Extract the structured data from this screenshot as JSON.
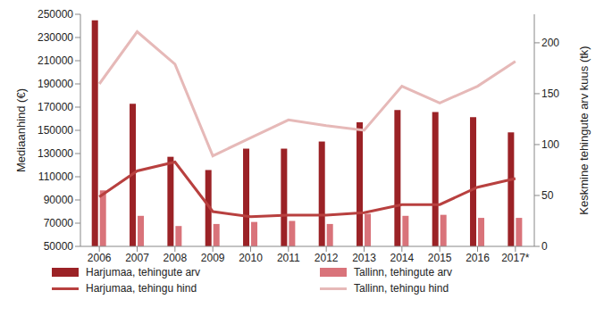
{
  "chart_data": {
    "type": "bar",
    "categories": [
      "2006",
      "2007",
      "2008",
      "2009",
      "2010",
      "2011",
      "2012",
      "2013",
      "2014",
      "2015",
      "2016",
      "2017*"
    ],
    "y_label": "Mediaanhind (€)",
    "y2_label": "Keskmine tehingute arv kuus (tk)",
    "ylim": [
      50000,
      250000
    ],
    "yticks": [
      50000,
      70000,
      90000,
      110000,
      130000,
      150000,
      170000,
      190000,
      210000,
      230000,
      250000
    ],
    "y2lim": [
      0,
      228
    ],
    "y2ticks": [
      0,
      50,
      100,
      150,
      200
    ],
    "grid": false,
    "legend": "bottom",
    "series": [
      {
        "name": "Harjumaa, tehingute arv",
        "type": "bar",
        "axis": "y2",
        "color": "#9b2226",
        "values": [
          222,
          140,
          88,
          75,
          96,
          96,
          103,
          122,
          134,
          132,
          127,
          112
        ]
      },
      {
        "name": "Tallinn, tehingute arv",
        "type": "bar",
        "axis": "y2",
        "color": "#d9737a",
        "values": [
          55,
          30,
          20,
          22,
          24,
          25,
          22,
          32,
          30,
          31,
          28,
          28
        ]
      },
      {
        "name": "Harjumaa, tehingu hind",
        "type": "line",
        "axis": "y",
        "color": "#b8403f",
        "values": [
          92700,
          115000,
          122700,
          80000,
          75500,
          77000,
          77000,
          79000,
          86000,
          86000,
          101000,
          108500
        ]
      },
      {
        "name": "Tallinn, tehingu hind",
        "type": "line",
        "axis": "y",
        "color": "#e6b9b8",
        "values": [
          190000,
          235000,
          207000,
          128000,
          143600,
          159000,
          154000,
          150000,
          188000,
          173600,
          188000,
          209500
        ]
      }
    ]
  }
}
